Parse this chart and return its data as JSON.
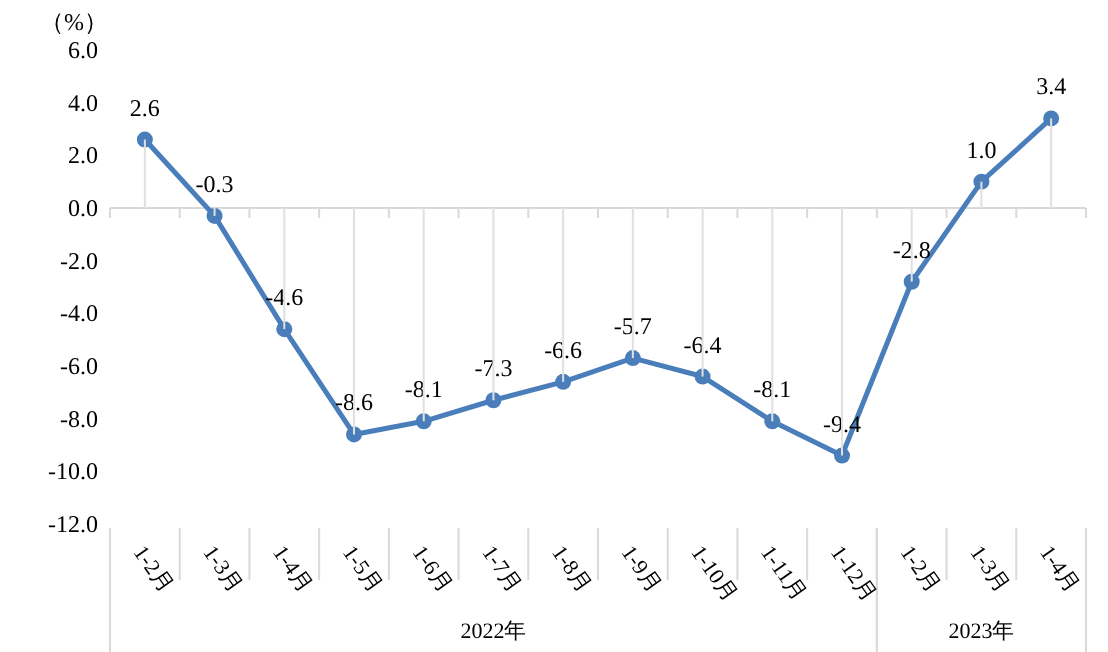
{
  "chart_data": {
    "type": "line",
    "ylabel": "（%）",
    "categories": [
      "1-2月",
      "1-3月",
      "1-4月",
      "1-5月",
      "1-6月",
      "1-7月",
      "1-8月",
      "1-9月",
      "1-10月",
      "1-11月",
      "1-12月",
      "1-2月",
      "1-3月",
      "1-4月"
    ],
    "series": [
      {
        "color": "#4a7ebb",
        "values": [
          2.6,
          -0.3,
          -4.6,
          -8.6,
          -8.1,
          -7.3,
          -6.6,
          -5.7,
          -6.4,
          -8.1,
          -9.4,
          -2.8,
          1.0,
          3.4
        ],
        "value_labels": [
          "2.6",
          "-0.3",
          "-4.6",
          "-8.6",
          "-8.1",
          "-7.3",
          "-6.6",
          "-5.7",
          "-6.4",
          "-8.1",
          "-9.4",
          "-2.8",
          "1.0",
          "3.4"
        ]
      }
    ],
    "ylim": [
      -12,
      6
    ],
    "yticks": [
      {
        "value": -12,
        "label": "-12.0"
      },
      {
        "value": -10,
        "label": "-10.0"
      },
      {
        "value": -8,
        "label": "-8.0"
      },
      {
        "value": -6,
        "label": "-6.0"
      },
      {
        "value": -4,
        "label": "-4.0"
      },
      {
        "value": -2,
        "label": "-2.0"
      },
      {
        "value": 0,
        "label": "0.0"
      },
      {
        "value": 2,
        "label": "2.0"
      },
      {
        "value": 4,
        "label": "4.0"
      },
      {
        "value": 6,
        "label": "6.0"
      }
    ],
    "marker": "circle",
    "line_style": "solid",
    "annotations": [
      "2022年",
      "2023年"
    ]
  }
}
